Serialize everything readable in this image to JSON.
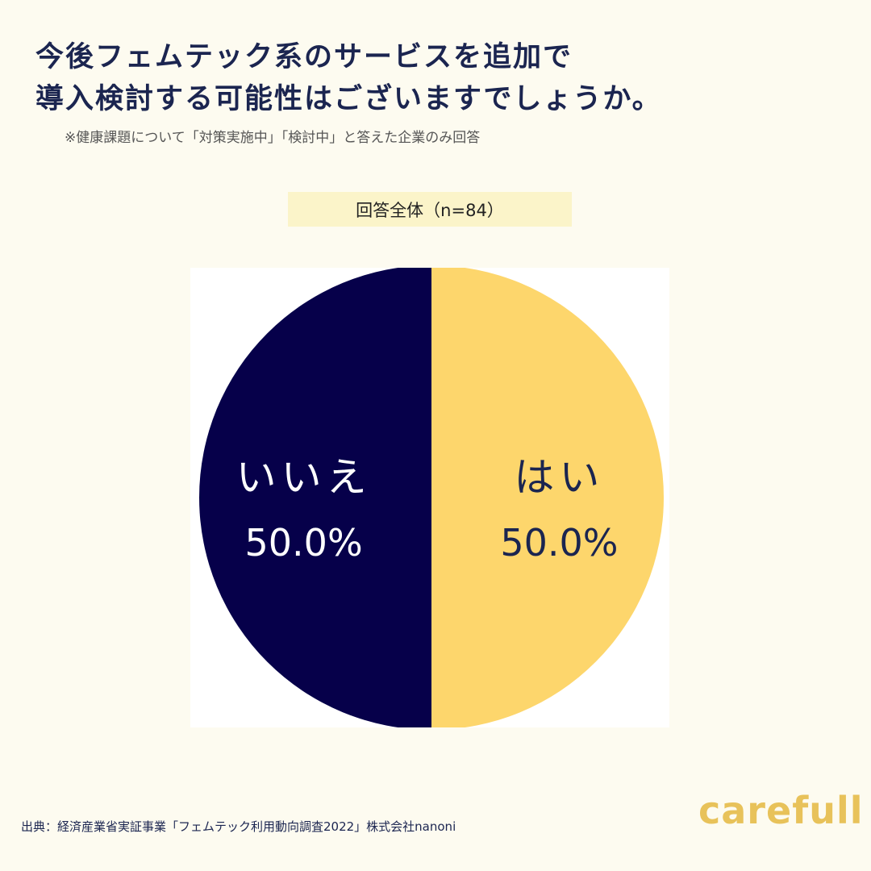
{
  "title_line1": "今後フェムテック系のサービスを追加で",
  "title_line2": "導入検討する可能性はございますでしょうか。",
  "note": "※健康課題について「対策実施中」「検討中」と答えた企業のみ回答",
  "group_label": "回答全体（n=84）",
  "source": "出典：経済産業省実証事業「フェムテック利用動向調査2022」株式会社nanoni",
  "brand": "carefull",
  "colors": {
    "background": "#fdfbf0",
    "title": "#1b2550",
    "yes_slice": "#fdd66c",
    "no_slice": "#06004a",
    "label_band": "#fbf4c9",
    "brand": "#e8c25a"
  },
  "chart_data": {
    "type": "pie",
    "title": "",
    "slices": [
      {
        "label": "はい",
        "value": 50.0,
        "value_label": "50.0%",
        "color": "#fdd66c",
        "text_color": "#1b2550"
      },
      {
        "label": "いいえ",
        "value": 50.0,
        "value_label": "50.0%",
        "color": "#06004a",
        "text_color": "#ffffff"
      }
    ],
    "start": "top",
    "direction": "clockwise"
  }
}
